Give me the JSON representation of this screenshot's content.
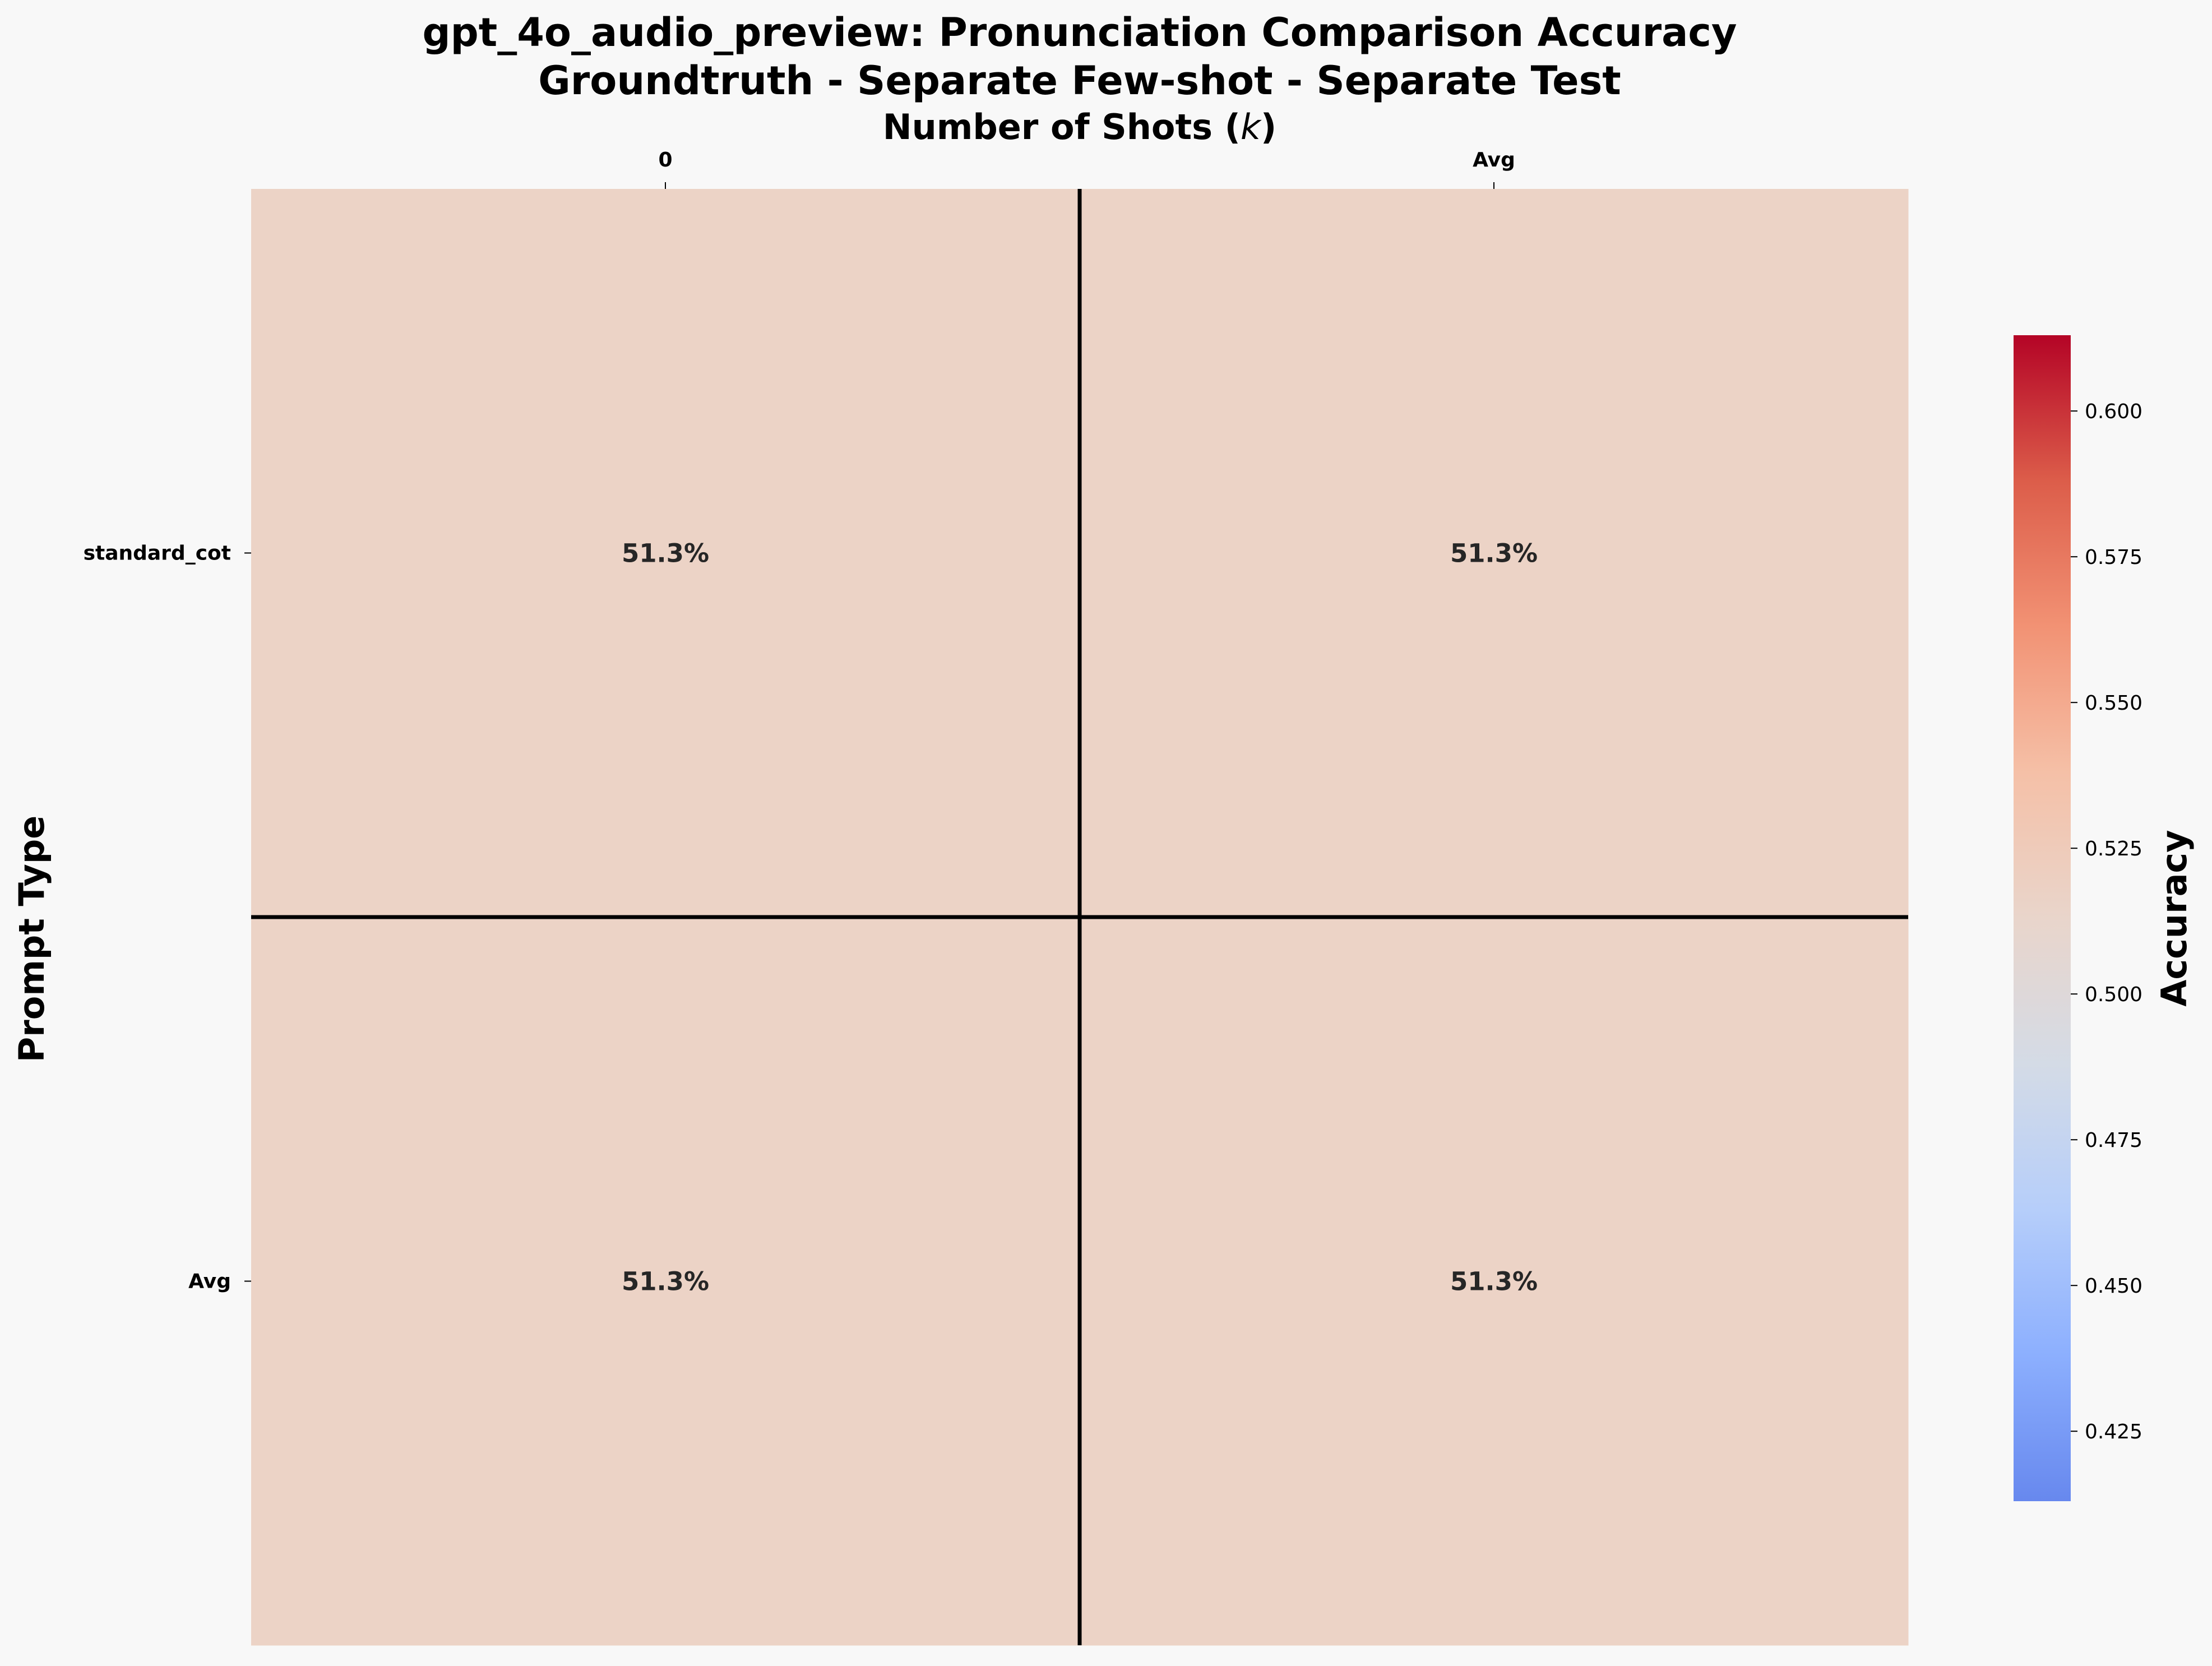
{
  "chart_data": {
    "type": "heatmap",
    "title": [
      "gpt_4o_audio_preview: Pronunciation Comparison Accuracy",
      "Groundtruth - Separate Few-shot - Separate Test"
    ],
    "xlabel": "Number of Shots (k)",
    "ylabel": "Prompt Type",
    "x_categories": [
      "0",
      "Avg"
    ],
    "y_categories": [
      "standard_cot",
      "Avg"
    ],
    "values": [
      [
        0.513,
        0.513
      ],
      [
        0.513,
        0.513
      ]
    ],
    "cell_labels": [
      [
        "51.3%",
        "51.3%"
      ],
      [
        "51.3%",
        "51.3%"
      ]
    ],
    "colorbar": {
      "label": "Accuracy",
      "colormap": "coolwarm",
      "range": [
        0.413,
        0.613
      ],
      "ticks": [
        0.425,
        0.45,
        0.475,
        0.5,
        0.525,
        0.55,
        0.575,
        0.6
      ],
      "tick_labels": [
        "0.425",
        "0.450",
        "0.475",
        "0.500",
        "0.525",
        "0.550",
        "0.575",
        "0.600"
      ]
    },
    "cell_color": "#ecd3c6",
    "separator_color": "#000000",
    "background": "#f8f8f8"
  }
}
